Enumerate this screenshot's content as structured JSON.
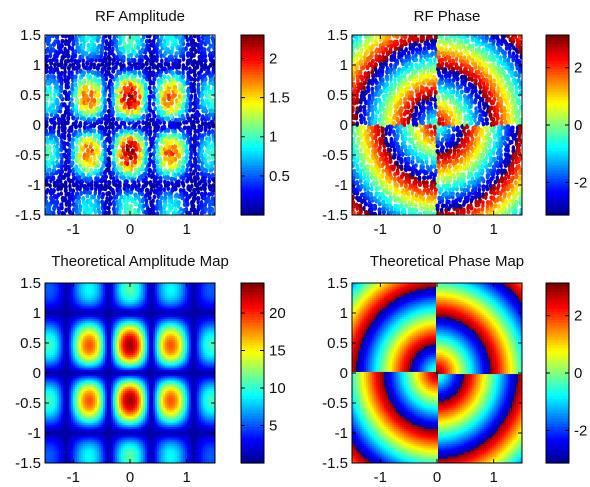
{
  "figure": {
    "background": "#ffffff",
    "colormap": [
      "#00008f",
      "#0000ff",
      "#0080ff",
      "#00ffff",
      "#80ff80",
      "#ffff00",
      "#ff8000",
      "#ff0000",
      "#800000"
    ]
  },
  "chart_data": [
    {
      "type": "heatmap",
      "title": "RF Amplitude",
      "style": "scattered measurement points",
      "xlim": [
        -1.5,
        1.5
      ],
      "ylim": [
        -1.5,
        1.5
      ],
      "x_ticks": [
        "-1",
        "0",
        "1"
      ],
      "y_ticks": [
        "1.5",
        "1",
        "0.5",
        "0",
        "-0.5",
        "-1",
        "-1.5"
      ],
      "colorbar_range": [
        0,
        2.3
      ],
      "colorbar_ticks": [
        "2",
        "1.5",
        "1",
        "0.5"
      ],
      "colorbar_tick_values": [
        2,
        1.5,
        1,
        0.5
      ],
      "field": "amplitude",
      "lobe_peak_value": 2.1
    },
    {
      "type": "heatmap",
      "title": "RF Phase",
      "style": "scattered measurement points",
      "xlim": [
        -1.5,
        1.5
      ],
      "ylim": [
        -1.5,
        1.5
      ],
      "x_ticks": [
        "-1",
        "0",
        "1"
      ],
      "y_ticks": [
        "1.5",
        "1",
        "0.5",
        "0",
        "-0.5",
        "-1",
        "-1.5"
      ],
      "colorbar_range": [
        -3.14,
        3.14
      ],
      "colorbar_ticks": [
        "2",
        "0",
        "-2"
      ],
      "colorbar_tick_values": [
        2,
        0,
        -2
      ],
      "field": "phase"
    },
    {
      "type": "heatmap",
      "title": "Theoretical Amplitude Map",
      "style": "continuous grid",
      "xlim": [
        -1.5,
        1.5
      ],
      "ylim": [
        -1.5,
        1.5
      ],
      "x_ticks": [
        "-1",
        "0",
        "1"
      ],
      "y_ticks": [
        "1.5",
        "1",
        "0.5",
        "0",
        "-0.5",
        "-1",
        "-1.5"
      ],
      "colorbar_range": [
        0,
        24
      ],
      "colorbar_ticks": [
        "20",
        "15",
        "10",
        "5"
      ],
      "colorbar_tick_values": [
        20,
        15,
        10,
        5
      ],
      "field": "amplitude",
      "lobe_peak_value": 22
    },
    {
      "type": "heatmap",
      "title": "Theoretical Phase Map",
      "style": "continuous grid",
      "xlim": [
        -1.5,
        1.5
      ],
      "ylim": [
        -1.5,
        1.5
      ],
      "x_ticks": [
        "-1",
        "0",
        "1"
      ],
      "y_ticks": [
        "1.5",
        "1",
        "0.5",
        "0",
        "-0.5",
        "-1",
        "-1.5"
      ],
      "colorbar_range": [
        -3.14,
        3.14
      ],
      "colorbar_ticks": [
        "2",
        "0",
        "-2"
      ],
      "colorbar_tick_values": [
        2,
        0,
        -2
      ],
      "field": "phase"
    }
  ]
}
